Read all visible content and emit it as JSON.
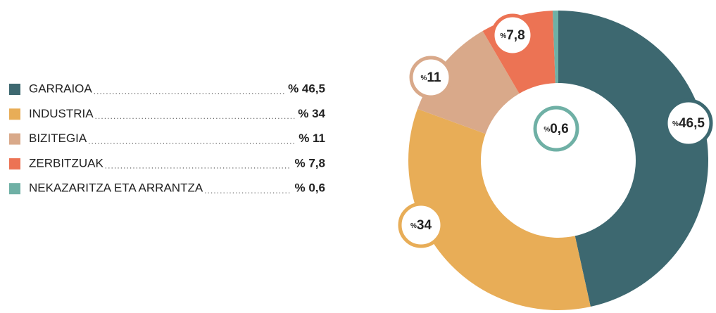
{
  "chart_data": {
    "type": "donut",
    "categories": [
      "GARRAIOA",
      "INDUSTRIA",
      "BIZITEGIA",
      "ZERBITZUAK",
      "NEKAZARITZA ETA ARRANTZA"
    ],
    "values": [
      46.5,
      34,
      11,
      7.8,
      0.6
    ],
    "value_labels": [
      "% 46,5",
      "% 34",
      "% 11",
      "% 7,8",
      "% 0,6"
    ],
    "colors": [
      "#3d6870",
      "#e8ad57",
      "#d9a98a",
      "#ec7354",
      "#6fb0a5"
    ]
  }
}
